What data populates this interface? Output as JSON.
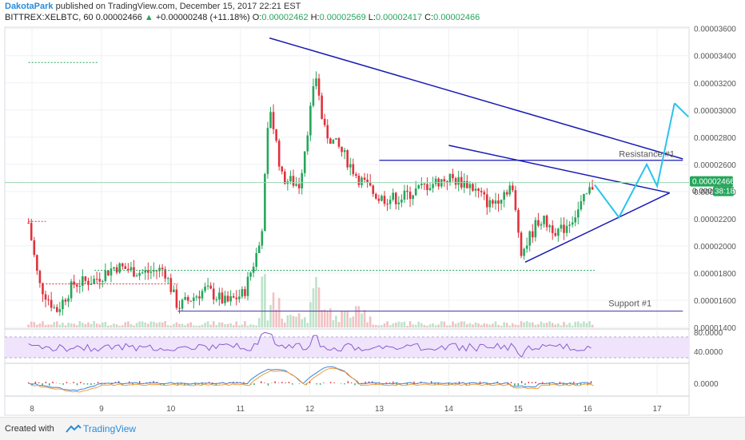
{
  "header": {
    "author": "DakotaPark",
    "published_text": "published on TradingView.com, December 15, 2017 22:21 EST",
    "symbol": "BITTREX:XELBTC, 60",
    "price": "0.00002466",
    "change": "+0.00000248 (+11.18%)",
    "open_label": "O:",
    "open": "0.00002462",
    "high_label": "H:",
    "high": "0.00002569",
    "low_label": "L:",
    "low": "0.00002417",
    "close_label": "C:",
    "close": "0.00002466"
  },
  "footer": {
    "created_with": "Created with",
    "brand": "TradingView"
  },
  "colors": {
    "up": "#26a65b",
    "down": "#e0323c",
    "trendline": "#1a1ab4",
    "projection": "#29c3ec",
    "grid": "#eef0f3",
    "price_badge": "#26a65b",
    "rsi_band": "#efe4fb"
  },
  "chart_data": {
    "type": "candlestick",
    "x_ticks": [
      "8",
      "9",
      "10",
      "11",
      "12",
      "13",
      "14",
      "15",
      "16",
      "17"
    ],
    "y_ticks": [
      "0.00003600",
      "0.00003400",
      "0.00003200",
      "0.00003000",
      "0.00002800",
      "0.00002600",
      "0.00002400",
      "0.00002200",
      "0.00002000",
      "0.00001800",
      "0.00001600",
      "0.00001400"
    ],
    "ylim": [
      1.4e-05,
      3.61e-05
    ],
    "current_price_label": "0.00002466",
    "current_price_partial_label": "0.000",
    "countdown": "38:18",
    "annotations": [
      {
        "text": "Resistance #1",
        "price": 2.62e-05
      },
      {
        "text": "Support #1",
        "price": 1.52e-05
      }
    ],
    "rsi": {
      "ticks": [
        "80.0000",
        "40.0000"
      ]
    },
    "macd": {
      "ticks": [
        "0.0000"
      ]
    }
  }
}
